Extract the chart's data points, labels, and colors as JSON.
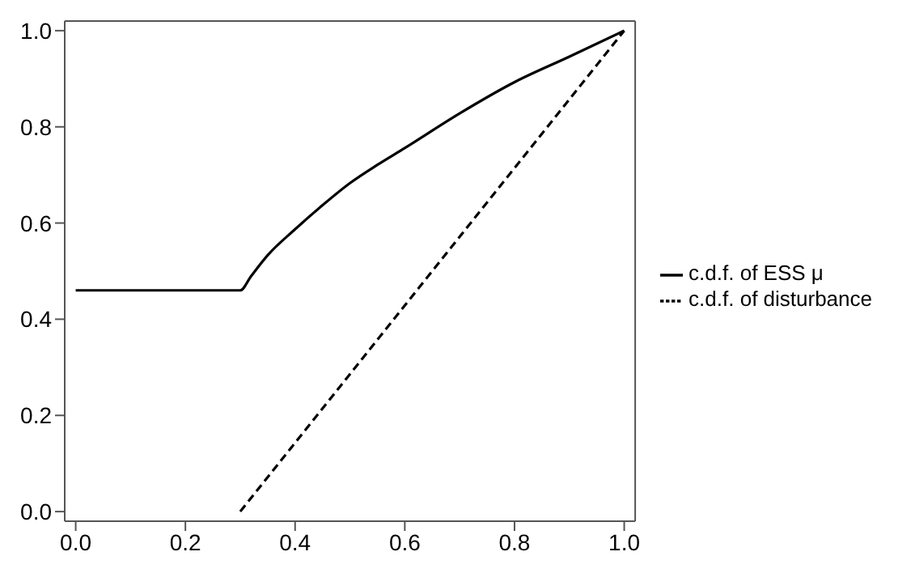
{
  "chart_data": {
    "type": "line",
    "xlim": [
      -0.02,
      1.02
    ],
    "ylim": [
      -0.02,
      1.02
    ],
    "xticks": [
      {
        "value": 0,
        "label": "0.0"
      },
      {
        "value": 0.2,
        "label": "0.2"
      },
      {
        "value": 0.4,
        "label": "0.4"
      },
      {
        "value": 0.6,
        "label": "0.6"
      },
      {
        "value": 0.8,
        "label": "0.8"
      },
      {
        "value": 1,
        "label": "1.0"
      }
    ],
    "yticks": [
      {
        "value": 0,
        "label": "0.0"
      },
      {
        "value": 0.2,
        "label": "0.2"
      },
      {
        "value": 0.4,
        "label": "0.4"
      },
      {
        "value": 0.6,
        "label": "0.6"
      },
      {
        "value": 0.8,
        "label": "0.8"
      },
      {
        "value": 1,
        "label": "1.0"
      }
    ],
    "grid": false,
    "legend": "right",
    "marker": "none",
    "series": [
      {
        "name": "c.d.f. of ESS μ",
        "color": "#000000",
        "line_style": "solid",
        "x": [
          0,
          0.3,
          0.32,
          0.35,
          0.4,
          0.45,
          0.5,
          0.55,
          0.6,
          0.7,
          0.8,
          0.9,
          1
        ],
        "values": [
          0.46,
          0.46,
          0.49,
          0.533,
          0.587,
          0.637,
          0.683,
          0.721,
          0.756,
          0.828,
          0.893,
          0.946,
          1
        ]
      },
      {
        "name": "c.d.f. of disturbance",
        "color": "#000000",
        "line_style": "dashed",
        "x": [
          0.3,
          1
        ],
        "values": [
          0,
          1
        ]
      }
    ]
  }
}
